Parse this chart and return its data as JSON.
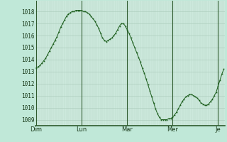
{
  "background_color": "#c0e8d8",
  "plot_bg_color": "#cce8dc",
  "grid_color_major": "#a8c8b8",
  "grid_color_minor": "#b8d8c8",
  "line_color": "#1a5c1a",
  "marker_color": "#1a5c1a",
  "ylabel_values": [
    1009,
    1010,
    1011,
    1012,
    1013,
    1014,
    1015,
    1016,
    1017,
    1018
  ],
  "ylim": [
    1008.5,
    1018.9
  ],
  "xtick_labels": [
    "Dim",
    "Lun",
    "Mar",
    "Mer",
    "Je"
  ],
  "xtick_positions": [
    0,
    24,
    48,
    72,
    96
  ],
  "n_points": 100,
  "y_data": [
    1013.3,
    1013.4,
    1013.5,
    1013.7,
    1013.9,
    1014.1,
    1014.4,
    1014.7,
    1015.0,
    1015.3,
    1015.6,
    1015.9,
    1016.3,
    1016.7,
    1017.0,
    1017.3,
    1017.6,
    1017.8,
    1017.9,
    1018.0,
    1018.0,
    1018.1,
    1018.1,
    1018.1,
    1018.1,
    1018.0,
    1018.0,
    1017.9,
    1017.8,
    1017.6,
    1017.4,
    1017.2,
    1016.9,
    1016.6,
    1016.2,
    1015.8,
    1015.6,
    1015.5,
    1015.6,
    1015.7,
    1015.8,
    1016.0,
    1016.2,
    1016.5,
    1016.8,
    1017.0,
    1017.0,
    1016.8,
    1016.5,
    1016.2,
    1015.8,
    1015.4,
    1015.0,
    1014.6,
    1014.2,
    1013.8,
    1013.3,
    1012.9,
    1012.4,
    1011.9,
    1011.4,
    1010.9,
    1010.4,
    1009.9,
    1009.5,
    1009.2,
    1009.0,
    1009.0,
    1009.0,
    1009.0,
    1009.1,
    1009.1,
    1009.2,
    1009.4,
    1009.6,
    1009.9,
    1010.2,
    1010.5,
    1010.7,
    1010.9,
    1011.0,
    1011.1,
    1011.1,
    1011.0,
    1010.9,
    1010.8,
    1010.6,
    1010.4,
    1010.3,
    1010.2,
    1010.2,
    1010.3,
    1010.5,
    1010.7,
    1011.0,
    1011.3,
    1011.8,
    1012.3,
    1012.8,
    1013.2
  ]
}
